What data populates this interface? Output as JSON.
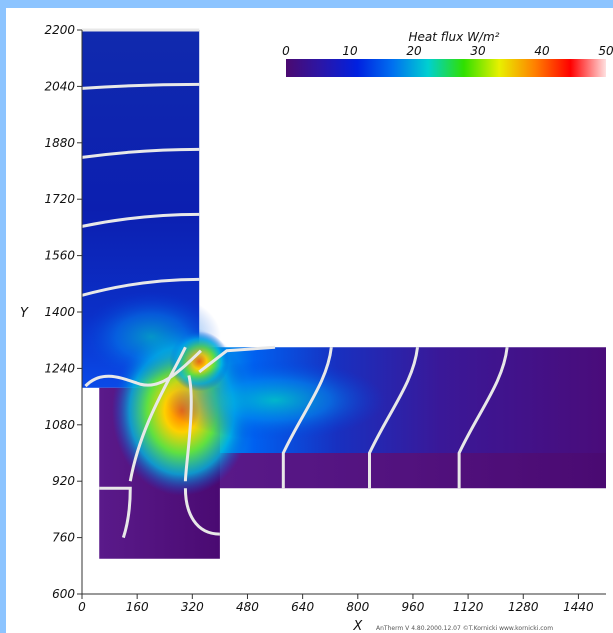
{
  "chart_data": {
    "type": "heatmap",
    "title": "",
    "xlabel": "X",
    "ylabel": "Y",
    "xlim": [
      0,
      1520
    ],
    "ylim": [
      600,
      2200
    ],
    "x_ticks": [
      0,
      160,
      320,
      480,
      640,
      800,
      960,
      1120,
      1280,
      1440
    ],
    "y_ticks": [
      600,
      760,
      920,
      1080,
      1240,
      1400,
      1560,
      1720,
      1880,
      2040,
      2200
    ],
    "colorbar": {
      "title": "Heat flux W/m²",
      "min": 0,
      "max": 50,
      "ticks": [
        0,
        10,
        20,
        30,
        40,
        50
      ],
      "placement": "top-right",
      "colormap": [
        "#4b0a70",
        "#2a16a8",
        "#0020e0",
        "#0070f0",
        "#00d0d0",
        "#30e000",
        "#e8f000",
        "#ff8000",
        "#ff0000",
        "#ffe0e0"
      ]
    },
    "regions": [
      {
        "name": "vertical wall",
        "x": [
          0,
          340
        ],
        "y": [
          1185,
          2200
        ]
      },
      {
        "name": "horizontal slab",
        "x": [
          320,
          1520
        ],
        "y": [
          1000,
          1300
        ]
      },
      {
        "name": "lower insulation",
        "x": [
          340,
          1520
        ],
        "y": [
          900,
          1000
        ]
      },
      {
        "name": "lower block",
        "x": [
          50,
          400
        ],
        "y": [
          700,
          1185
        ]
      }
    ],
    "isolines_y_on_wall": [
      2040,
      1850,
      1660,
      1470
    ],
    "isolines_x_on_slab": [
      700,
      950,
      1210
    ],
    "credit": "AnTherm V 4.80.2000.12.07 ©T.Kornicki www.kornicki.com"
  }
}
